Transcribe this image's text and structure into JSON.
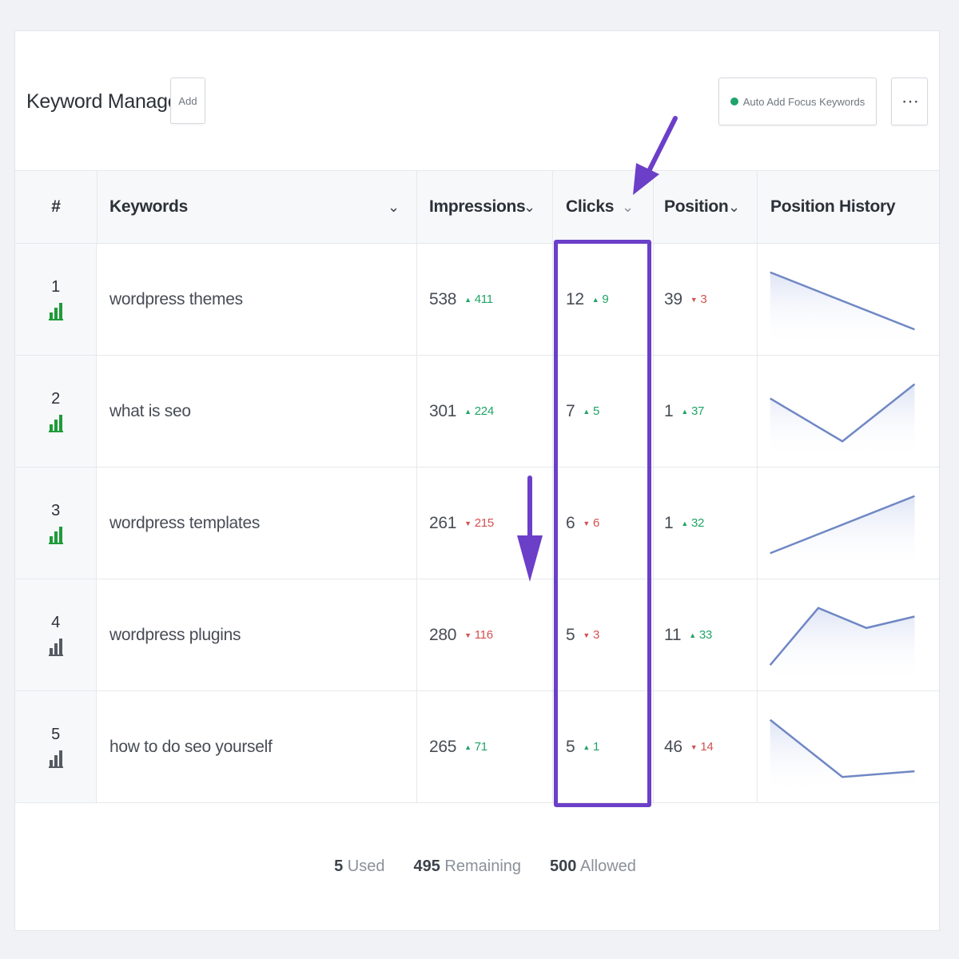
{
  "header": {
    "title": "Keyword Manager",
    "add_label": "Add",
    "auto_add_label": "Auto Add Focus Keywords",
    "more_label": "⋯"
  },
  "columns": {
    "num": "#",
    "keywords": "Keywords",
    "impressions": "Impressions",
    "clicks": "Clicks",
    "position": "Position",
    "history": "Position History"
  },
  "rows": [
    {
      "index": "1",
      "trend_color": "green",
      "keyword": "wordpress themes",
      "impressions": "538",
      "impressions_delta": "411",
      "impressions_dir": "up",
      "clicks": "12",
      "clicks_delta": "9",
      "clicks_dir": "up",
      "position": "39",
      "position_delta": "3",
      "position_dir": "down",
      "history": [
        1.0,
        0.0
      ]
    },
    {
      "index": "2",
      "trend_color": "green",
      "keyword": "what is seo",
      "impressions": "301",
      "impressions_delta": "224",
      "impressions_dir": "up",
      "clicks": "7",
      "clicks_delta": "5",
      "clicks_dir": "up",
      "position": "1",
      "position_delta": "37",
      "position_dir": "up",
      "history": [
        0.75,
        0.0,
        1.0
      ]
    },
    {
      "index": "3",
      "trend_color": "green",
      "keyword": "wordpress templates",
      "impressions": "261",
      "impressions_delta": "215",
      "impressions_dir": "down",
      "clicks": "6",
      "clicks_delta": "6",
      "clicks_dir": "down",
      "position": "1",
      "position_delta": "32",
      "position_dir": "up",
      "history": [
        0.0,
        1.0
      ]
    },
    {
      "index": "4",
      "trend_color": "gray",
      "keyword": "wordpress plugins",
      "impressions": "280",
      "impressions_delta": "116",
      "impressions_dir": "down",
      "clicks": "5",
      "clicks_delta": "3",
      "clicks_dir": "down",
      "position": "11",
      "position_delta": "33",
      "position_dir": "up",
      "history": [
        0.0,
        1.0,
        0.65,
        0.85
      ]
    },
    {
      "index": "5",
      "trend_color": "gray",
      "keyword": "how to do seo yourself",
      "impressions": "265",
      "impressions_delta": "71",
      "impressions_dir": "up",
      "clicks": "5",
      "clicks_delta": "1",
      "clicks_dir": "up",
      "position": "46",
      "position_delta": "14",
      "position_dir": "down",
      "history": [
        1.0,
        0.0,
        0.1
      ]
    }
  ],
  "footer": {
    "used_count": "5",
    "used_label": "Used",
    "remaining_count": "495",
    "remaining_label": "Remaining",
    "allowed_count": "500",
    "allowed_label": "Allowed"
  },
  "colors": {
    "highlight": "#6b3fc8",
    "up": "#20a466",
    "down": "#d4504f",
    "history_line": "#6f87c4"
  }
}
